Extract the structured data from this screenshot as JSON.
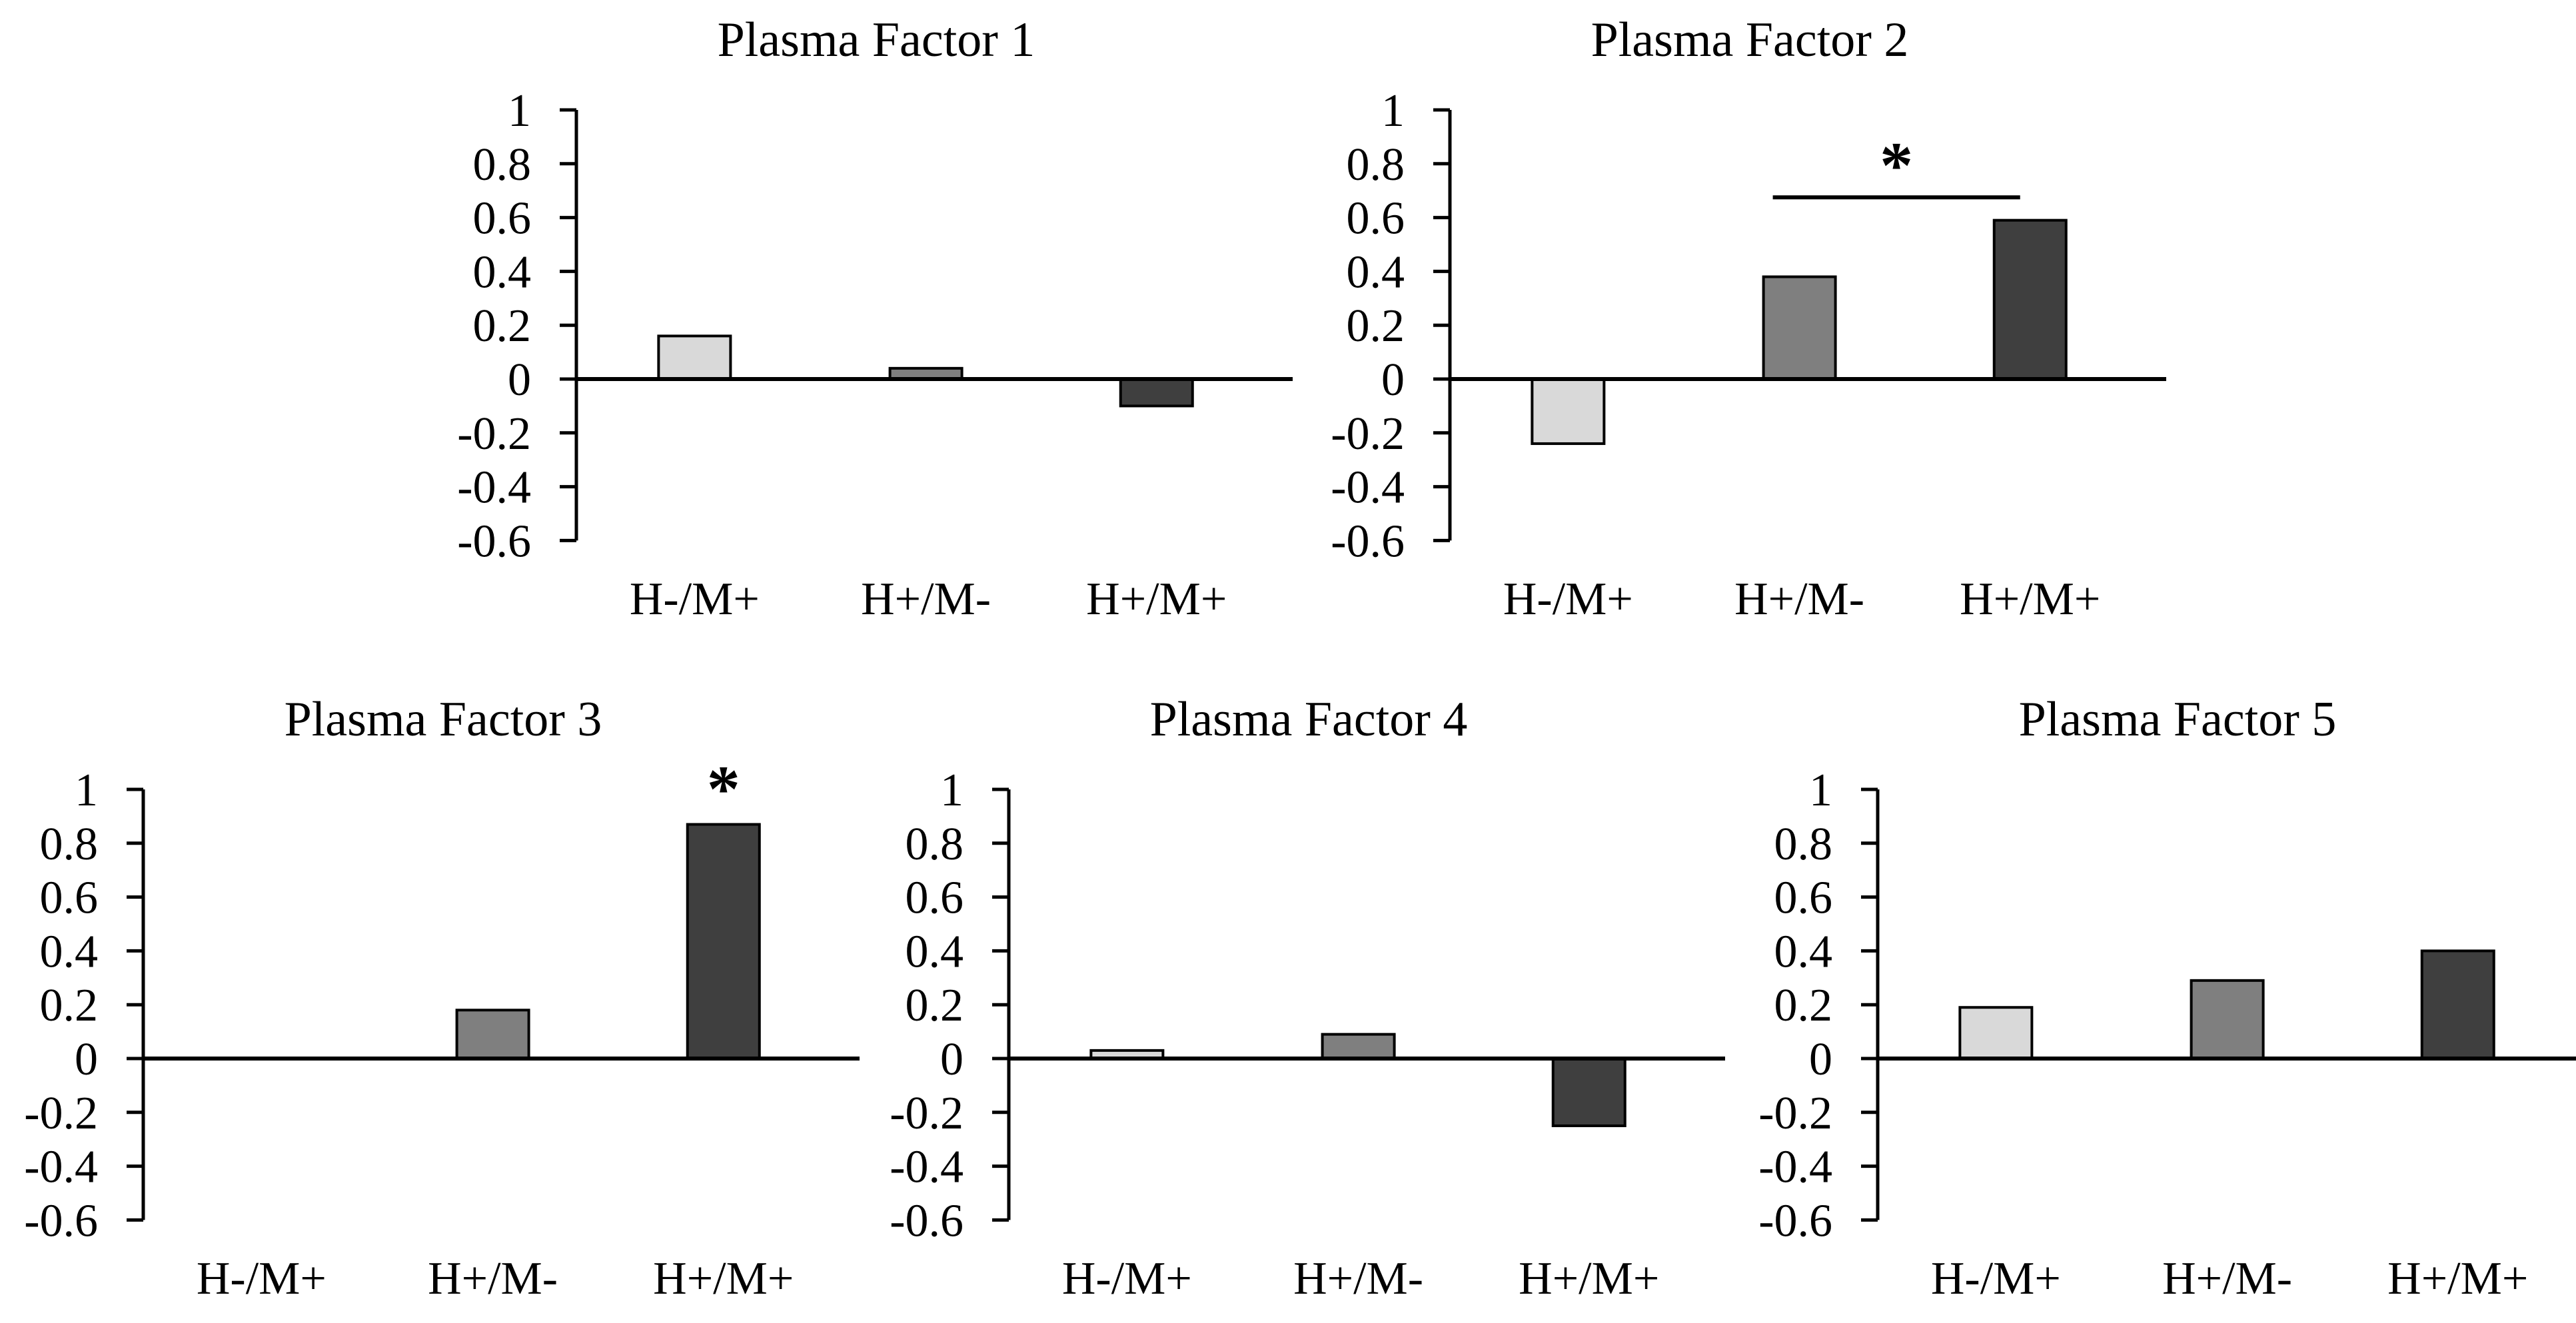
{
  "figure": {
    "background": "#ffffff",
    "text_color": "#000000",
    "bar_colors": [
      "#d9d9d9",
      "#7f7f7f",
      "#3f3f3f"
    ],
    "bar_outline_color": "#000000",
    "axis_color": "#000000"
  },
  "axis": {
    "ylim": [
      -0.6,
      1
    ],
    "tick_values": [
      1,
      0.8,
      0.6,
      0.4,
      0.2,
      0,
      -0.2,
      -0.4,
      -0.6
    ],
    "tick_labels": [
      "1",
      "0.8",
      "0.6",
      "0.4",
      "0.2",
      "0",
      "-0.2",
      "-0.4",
      "-0.6"
    ]
  },
  "chart_data": [
    {
      "type": "bar",
      "title": "Plasma Factor 1",
      "categories": [
        "H-/M+",
        "H+/M-",
        "H+/M+"
      ],
      "values": [
        0.16,
        0.04,
        -0.1
      ],
      "ylim": [
        -0.6,
        1
      ],
      "yticks": [
        1,
        0.8,
        0.6,
        0.4,
        0.2,
        0,
        -0.2,
        -0.4,
        -0.6
      ],
      "grid": false,
      "legend": false,
      "significance": null
    },
    {
      "type": "bar",
      "title": "Plasma Factor 2",
      "categories": [
        "H-/M+",
        "H+/M-",
        "H+/M+"
      ],
      "values": [
        -0.24,
        0.38,
        0.59
      ],
      "ylim": [
        -0.6,
        1
      ],
      "yticks": [
        1,
        0.8,
        0.6,
        0.4,
        0.2,
        0,
        -0.2,
        -0.4,
        -0.6
      ],
      "grid": false,
      "legend": false,
      "significance": {
        "style": "bracket",
        "from_category": "H+/M-",
        "to_category": "H+/M+",
        "label": "*",
        "bracket_y_value": 0.675
      }
    },
    {
      "type": "bar",
      "title": "Plasma Factor 3",
      "categories": [
        "H-/M+",
        "H+/M-",
        "H+/M+"
      ],
      "values": [
        0,
        0.18,
        0.87
      ],
      "ylim": [
        -0.6,
        1
      ],
      "yticks": [
        1,
        0.8,
        0.6,
        0.4,
        0.2,
        0,
        -0.2,
        -0.4,
        -0.6
      ],
      "grid": false,
      "legend": false,
      "significance": {
        "style": "star",
        "category": "H+/M+",
        "label": "*"
      }
    },
    {
      "type": "bar",
      "title": "Plasma Factor 4",
      "categories": [
        "H-/M+",
        "H+/M-",
        "H+/M+"
      ],
      "values": [
        0.03,
        0.09,
        -0.25
      ],
      "ylim": [
        -0.6,
        1
      ],
      "yticks": [
        1,
        0.8,
        0.6,
        0.4,
        0.2,
        0,
        -0.2,
        -0.4,
        -0.6
      ],
      "grid": false,
      "legend": false,
      "significance": null
    },
    {
      "type": "bar",
      "title": "Plasma Factor 5",
      "categories": [
        "H-/M+",
        "H+/M-",
        "H+/M+"
      ],
      "values": [
        0.19,
        0.29,
        0.4
      ],
      "ylim": [
        -0.6,
        1
      ],
      "yticks": [
        1,
        0.8,
        0.6,
        0.4,
        0.2,
        0,
        -0.2,
        -0.4,
        -0.6
      ],
      "grid": false,
      "legend": false,
      "significance": null
    }
  ]
}
